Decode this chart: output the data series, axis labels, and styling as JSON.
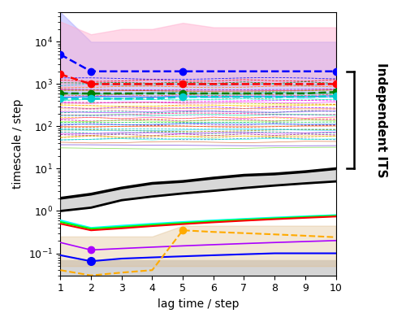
{
  "lag_times": [
    1,
    2,
    3,
    4,
    5,
    6,
    7,
    8,
    9,
    10
  ],
  "xlabel": "lag time / step",
  "ylabel": "timescale / step",
  "bracket_label": "Independent ITS",
  "background_color": "#ffffff",
  "blue_fill_upper": [
    50000,
    10000,
    10000,
    10000,
    10000,
    10000,
    10000,
    10000,
    10000,
    10000
  ],
  "blue_fill_lower": [
    500,
    500,
    500,
    500,
    500,
    500,
    500,
    500,
    500,
    500
  ],
  "pink_fill_upper": [
    30000,
    15000,
    20000,
    20000,
    28000,
    22000,
    22000,
    22000,
    22000,
    22000
  ],
  "pink_fill_lower": [
    800,
    900,
    900,
    900,
    900,
    900,
    900,
    900,
    900,
    900
  ],
  "orange_fill_upper": [
    0.25,
    0.25,
    0.25,
    0.25,
    0.45,
    0.45,
    0.45,
    0.45,
    0.45,
    0.45
  ],
  "orange_fill_lower": [
    0.05,
    0.05,
    0.05,
    0.05,
    0.05,
    0.05,
    0.05,
    0.05,
    0.05,
    0.05
  ],
  "its_lines": {
    "blue_dashed": {
      "values": [
        5000,
        2000,
        2000,
        2000,
        2000,
        2000,
        2000,
        2000,
        2000,
        2000
      ],
      "color": "#0000ff",
      "dots_at": [
        0,
        1,
        4,
        9
      ]
    },
    "red_dashed": {
      "values": [
        1700,
        1000,
        1000,
        1000,
        1000,
        1000,
        1000,
        1000,
        1000,
        1000
      ],
      "color": "#ff0000",
      "dots_at": [
        0,
        1,
        4,
        9
      ]
    },
    "green_dashed": {
      "values": [
        600,
        600,
        600,
        600,
        600,
        600,
        600,
        600,
        600,
        650
      ],
      "color": "#008000",
      "dots_at": [
        0,
        1,
        4,
        9
      ]
    },
    "cyan_dashed": {
      "values": [
        450,
        450,
        450,
        450,
        500,
        500,
        500,
        500,
        500,
        520
      ],
      "color": "#00cccc",
      "dots_at": [
        0,
        1,
        4,
        9
      ]
    }
  },
  "many_dashed_colors": [
    "#0000ff",
    "#ff0000",
    "#008000",
    "#00cccc",
    "#ff8800",
    "#aa00aa",
    "#88cc00",
    "#4488ff",
    "#ff4444",
    "#00ffff",
    "#44aa44",
    "#ff00ff",
    "#aaaa00",
    "#ff6600",
    "#8800ff",
    "#ff88aa",
    "#00aa88",
    "#ff0088",
    "#8888ff",
    "#ffcc00",
    "#cc0088",
    "#00cc44",
    "#4400cc",
    "#cc4400",
    "#00cccc",
    "#888800",
    "#008888",
    "#880088",
    "#cc8800",
    "#0088cc"
  ],
  "many_solid_colors": [
    "#ff0000",
    "#00ff00",
    "#0000ff",
    "#00ffff",
    "#ff00ff",
    "#ffff00",
    "#ff8800",
    "#8800ff",
    "#00ff88",
    "#ff0088",
    "#88ff00",
    "#0088ff",
    "#ff4400",
    "#00ccff",
    "#cc00ff",
    "#ffcc00",
    "#00ffcc",
    "#cc4400",
    "#4400cc",
    "#44cc00"
  ],
  "black_line_upper": [
    2.0,
    2.5,
    3.5,
    4.5,
    5.0,
    6.0,
    7.0,
    7.5,
    8.5,
    10.0
  ],
  "black_line_lower": [
    1.0,
    1.2,
    1.8,
    2.2,
    2.6,
    3.0,
    3.5,
    4.0,
    4.5,
    5.0
  ],
  "cyan_solid": [
    0.6,
    0.4,
    0.45,
    0.5,
    0.55,
    0.6,
    0.65,
    0.7,
    0.75,
    0.8
  ],
  "green_solid": [
    0.55,
    0.38,
    0.42,
    0.47,
    0.52,
    0.57,
    0.62,
    0.67,
    0.72,
    0.77
  ],
  "red_solid": [
    0.5,
    0.35,
    0.39,
    0.44,
    0.49,
    0.54,
    0.59,
    0.64,
    0.69,
    0.74
  ],
  "blue_low_solid": [
    0.09,
    0.065,
    0.075,
    0.08,
    0.085,
    0.09,
    0.095,
    0.1,
    0.1,
    0.1
  ],
  "purple_low_solid": [
    0.18,
    0.12,
    0.13,
    0.14,
    0.15,
    0.16,
    0.17,
    0.18,
    0.19,
    0.2
  ],
  "orange_low_dashed": [
    0.04,
    0.03,
    0.035,
    0.04,
    0.35,
    0.32,
    0.3,
    0.28,
    0.26,
    0.24
  ],
  "ylim_low": 0.03,
  "ylim_high": 50000
}
